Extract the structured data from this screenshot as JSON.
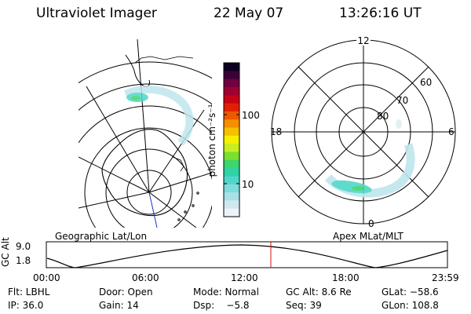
{
  "header": {
    "instrument": "Ultraviolet Imager",
    "date": "22 May 07",
    "time": "13:26:16 UT"
  },
  "colorbar": {
    "unit_label": "photon cm⁻²s⁻¹",
    "ticks": [
      "100",
      "10"
    ],
    "colors": [
      "#ecf4f8",
      "#cfe8ef",
      "#a9e1e6",
      "#7fdcdc",
      "#4fd6c8",
      "#2ed3a6",
      "#40d46c",
      "#7ae030",
      "#c8ee20",
      "#f4f000",
      "#f6c000",
      "#f49000",
      "#ee5800",
      "#e02000",
      "#c80018",
      "#a00030",
      "#700040",
      "#3c0038",
      "#0a0020"
    ]
  },
  "polar": {
    "mlt_labels": [
      "12",
      "18",
      "6",
      "0"
    ],
    "mlat_labels": [
      "60",
      "70",
      "80"
    ]
  },
  "altitude": {
    "left_label": "Geographic Lat/Lon",
    "right_label": "Apex MLat/MLT",
    "ylabel": "GC Alt",
    "yticks": [
      "9.0",
      "1.8"
    ],
    "xticks": [
      "00:00",
      "06:00",
      "12:00",
      "18:00",
      "23:59"
    ],
    "marker_color": "#d01010"
  },
  "info": {
    "row1": [
      "Flt: LBHL",
      "Door: Open",
      "Mode: Normal",
      "GC Alt: 8.6 Re",
      "GLat: −58.6"
    ],
    "row2": [
      "IP: 36.0",
      "Gain: 14",
      "Dsp:    −5.8",
      "Seq: 39",
      "GLon: 108.8"
    ]
  }
}
